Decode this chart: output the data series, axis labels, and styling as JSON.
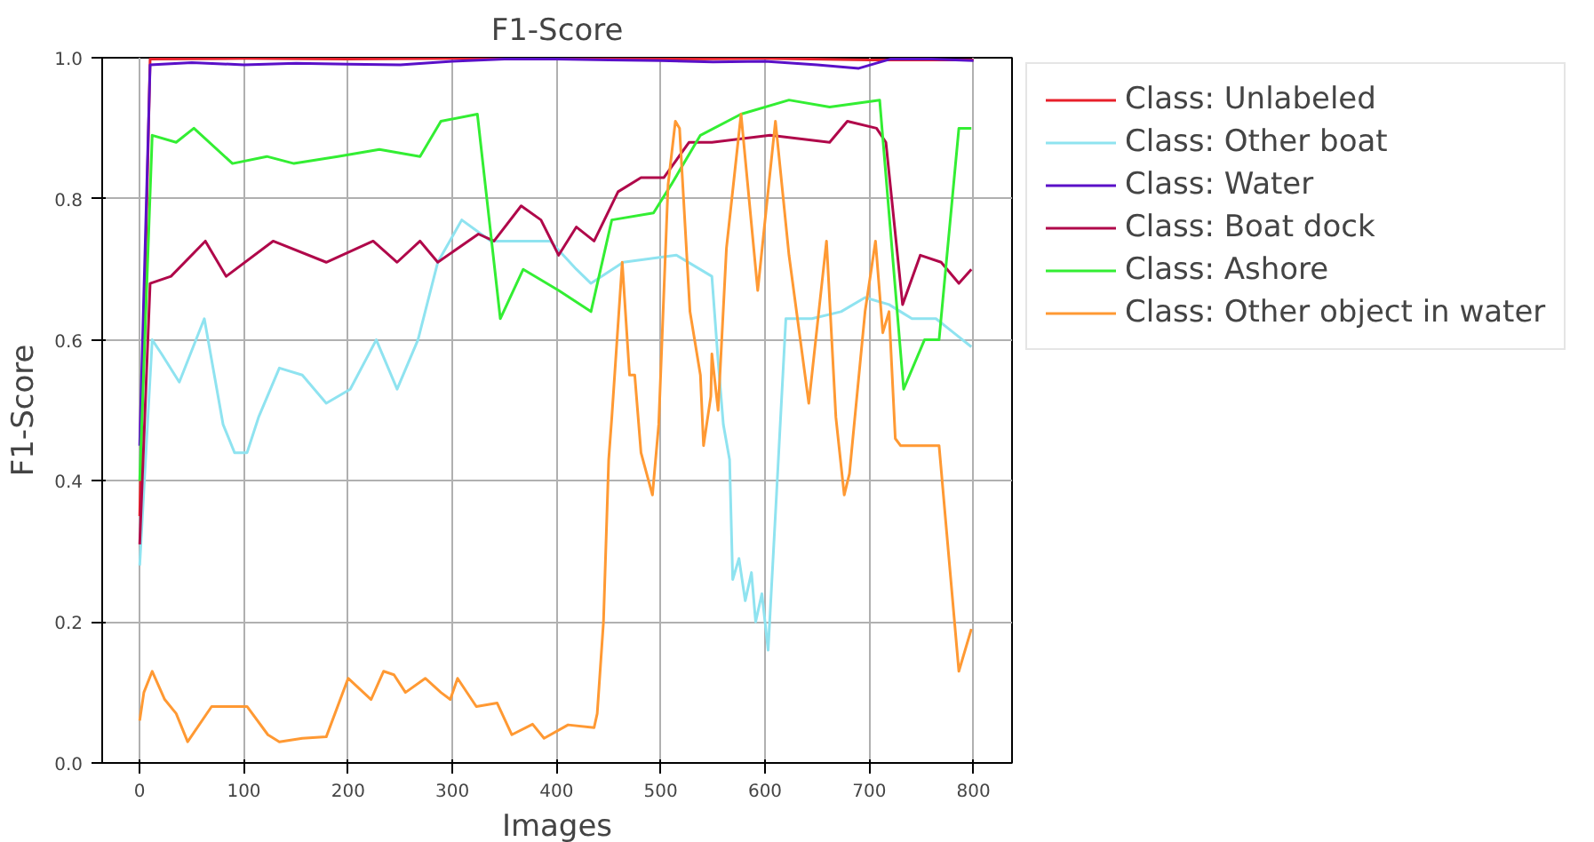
{
  "chart_data": {
    "type": "line",
    "title": "F1-Score",
    "xlabel": "Images",
    "ylabel": "F1-Score",
    "xlim": [
      -36,
      837
    ],
    "ylim": [
      0,
      1
    ],
    "xticks": [
      0,
      100,
      200,
      300,
      400,
      500,
      600,
      700,
      800
    ],
    "yticks": [
      {
        "value": 0,
        "label": "0.0"
      },
      {
        "value": 0.2,
        "label": "0.2"
      },
      {
        "value": 0.4,
        "label": "0.4"
      },
      {
        "value": 0.6,
        "label": "0.6"
      },
      {
        "value": 0.8,
        "label": "0.8"
      },
      {
        "value": 1,
        "label": "1.0"
      }
    ],
    "grid": true,
    "legend": "right",
    "marker": "none",
    "line_style": "solid",
    "series": [
      {
        "name": "Class: Unlabeled",
        "color": "#e8202a",
        "x": [
          0,
          10,
          100,
          200,
          300,
          400,
          500,
          600,
          700,
          800
        ],
        "values": [
          0.35,
          0.998,
          0.999,
          0.998,
          0.999,
          0.999,
          0.998,
          0.999,
          0.997,
          0.997
        ]
      },
      {
        "name": "Class: Other boat",
        "color": "#8fe3f0",
        "x": [
          0,
          12,
          21,
          38,
          62,
          80,
          91,
          103,
          114,
          134,
          156,
          179,
          202,
          227,
          247,
          267,
          286,
          309,
          337,
          371,
          394,
          419,
          433,
          464,
          515,
          549,
          555,
          560,
          566,
          569,
          575,
          581,
          587,
          591,
          597,
          603,
          611,
          620,
          645,
          673,
          696,
          719,
          741,
          764,
          781,
          798
        ],
        "values": [
          0.28,
          0.6,
          0.58,
          0.54,
          0.63,
          0.48,
          0.44,
          0.44,
          0.49,
          0.56,
          0.55,
          0.51,
          0.53,
          0.6,
          0.53,
          0.6,
          0.71,
          0.77,
          0.74,
          0.74,
          0.74,
          0.7,
          0.68,
          0.71,
          0.72,
          0.69,
          0.57,
          0.48,
          0.43,
          0.26,
          0.29,
          0.23,
          0.27,
          0.2,
          0.24,
          0.16,
          0.38,
          0.63,
          0.63,
          0.64,
          0.66,
          0.65,
          0.63,
          0.63,
          0.61,
          0.59
        ]
      },
      {
        "name": "Class: Water",
        "color": "#5a10c8",
        "x": [
          0,
          10,
          50,
          100,
          150,
          200,
          250,
          300,
          350,
          400,
          450,
          500,
          550,
          600,
          650,
          690,
          720,
          760,
          800
        ],
        "values": [
          0.45,
          0.99,
          0.993,
          0.99,
          0.992,
          0.991,
          0.99,
          0.995,
          0.998,
          0.998,
          0.997,
          0.996,
          0.994,
          0.995,
          0.99,
          0.985,
          0.998,
          0.998,
          0.996
        ]
      },
      {
        "name": "Class: Boat dock",
        "color": "#b0084a",
        "x": [
          0,
          10,
          30,
          63,
          83,
          128,
          179,
          224,
          247,
          269,
          286,
          325,
          340,
          366,
          385,
          402,
          419,
          436,
          459,
          481,
          503,
          527,
          549,
          605,
          662,
          679,
          707,
          716,
          732,
          749,
          769,
          786,
          798
        ],
        "values": [
          0.31,
          0.68,
          0.69,
          0.74,
          0.69,
          0.74,
          0.71,
          0.74,
          0.71,
          0.74,
          0.71,
          0.75,
          0.74,
          0.79,
          0.77,
          0.72,
          0.76,
          0.74,
          0.81,
          0.83,
          0.83,
          0.88,
          0.88,
          0.89,
          0.88,
          0.91,
          0.9,
          0.88,
          0.65,
          0.72,
          0.71,
          0.68,
          0.7
        ]
      },
      {
        "name": "Class: Ashore",
        "color": "#33ee33",
        "x": [
          0,
          12,
          35,
          52,
          89,
          122,
          148,
          190,
          230,
          269,
          289,
          324,
          346,
          368,
          402,
          433,
          453,
          493,
          510,
          538,
          577,
          623,
          662,
          710,
          733,
          753,
          767,
          786,
          798
        ],
        "values": [
          0.4,
          0.89,
          0.88,
          0.9,
          0.85,
          0.86,
          0.85,
          0.86,
          0.87,
          0.86,
          0.91,
          0.92,
          0.63,
          0.7,
          0.67,
          0.64,
          0.77,
          0.78,
          0.82,
          0.89,
          0.92,
          0.94,
          0.93,
          0.94,
          0.53,
          0.6,
          0.6,
          0.9,
          0.9
        ]
      },
      {
        "name": "Class: Other object in water",
        "color": "#ff9933",
        "x": [
          0,
          4,
          12,
          24,
          35,
          46,
          69,
          103,
          123,
          134,
          156,
          179,
          200,
          222,
          234,
          244,
          255,
          274,
          289,
          298,
          305,
          323,
          343,
          357,
          377,
          388,
          411,
          436,
          439,
          445,
          450,
          453,
          463,
          470,
          475,
          481,
          492,
          498,
          507,
          514,
          518,
          528,
          538,
          541,
          548,
          549,
          555,
          563,
          577,
          593,
          610,
          623,
          642,
          659,
          668,
          676,
          681,
          696,
          706,
          713,
          719,
          725,
          730,
          767,
          786,
          798
        ],
        "values": [
          0.06,
          0.1,
          0.13,
          0.09,
          0.07,
          0.03,
          0.08,
          0.08,
          0.04,
          0.03,
          0.035,
          0.037,
          0.12,
          0.09,
          0.13,
          0.125,
          0.1,
          0.12,
          0.1,
          0.09,
          0.12,
          0.08,
          0.085,
          0.04,
          0.055,
          0.035,
          0.054,
          0.05,
          0.07,
          0.2,
          0.43,
          0.49,
          0.71,
          0.55,
          0.55,
          0.44,
          0.38,
          0.48,
          0.82,
          0.91,
          0.9,
          0.64,
          0.55,
          0.45,
          0.52,
          0.58,
          0.5,
          0.73,
          0.92,
          0.67,
          0.91,
          0.72,
          0.51,
          0.74,
          0.49,
          0.38,
          0.41,
          0.64,
          0.74,
          0.61,
          0.64,
          0.46,
          0.45,
          0.45,
          0.13,
          0.19
        ]
      }
    ]
  }
}
